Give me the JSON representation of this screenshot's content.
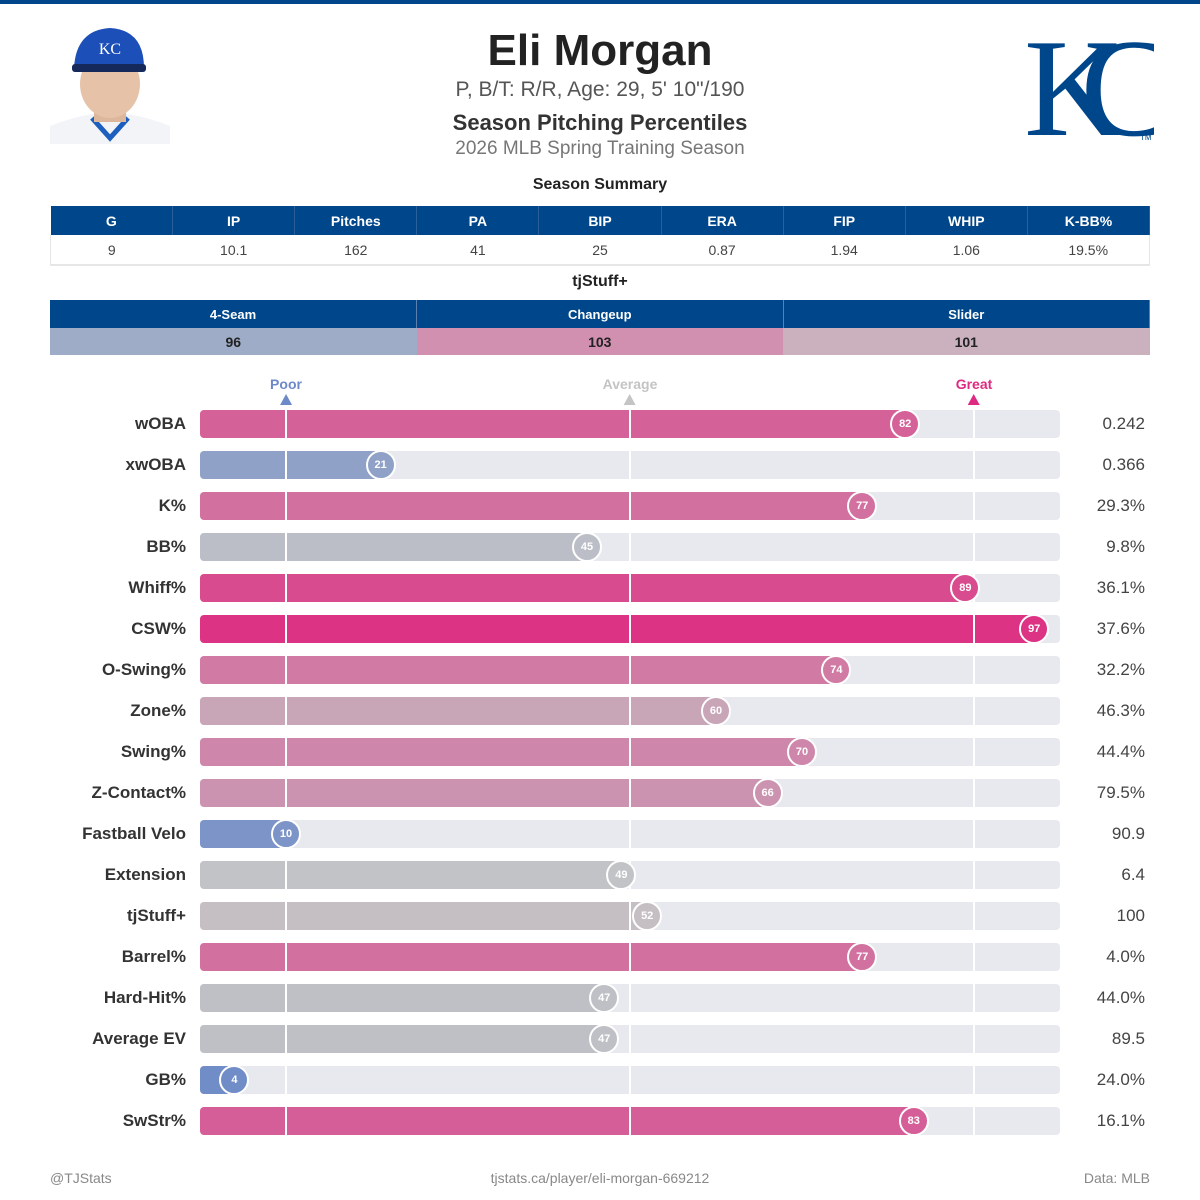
{
  "header": {
    "name": "Eli Morgan",
    "bio": "P, B/T: R/R, Age: 29, 5' 10\"/190",
    "title": "Season Pitching Percentiles",
    "season": "2026 MLB Spring Training Season",
    "logo_text": "KC",
    "brand_color": "#00468b"
  },
  "summary": {
    "title": "Season Summary",
    "columns": [
      "G",
      "IP",
      "Pitches",
      "PA",
      "BIP",
      "ERA",
      "FIP",
      "WHIP",
      "K-BB%"
    ],
    "values": [
      "9",
      "10.1",
      "162",
      "41",
      "25",
      "0.87",
      "1.94",
      "1.06",
      "19.5%"
    ]
  },
  "tjstuff": {
    "title": "tjStuff+",
    "pitches": [
      {
        "name": "4-Seam",
        "value": "96",
        "color": "#9eacc8"
      },
      {
        "name": "Changeup",
        "value": "103",
        "color": "#d190b0"
      },
      {
        "name": "Slider",
        "value": "101",
        "color": "#cbb1be"
      }
    ]
  },
  "markers": {
    "poor": "Poor",
    "average": "Average",
    "great": "Great",
    "poor_color": "#6d8ac8",
    "average_color": "#c4c4c4",
    "great_color": "#de2a80"
  },
  "chart_data": {
    "type": "bar",
    "orientation": "horizontal",
    "xlim": [
      0,
      100
    ],
    "reference_lines": [
      10,
      50,
      90
    ],
    "color_scale": [
      {
        "p": 0,
        "color": "#6a88c8"
      },
      {
        "p": 50,
        "color": "#c4c4c6"
      },
      {
        "p": 100,
        "color": "#de2a80"
      }
    ],
    "rows": [
      {
        "label": "wOBA",
        "percentile": 82,
        "value": "0.242"
      },
      {
        "label": "xwOBA",
        "percentile": 21,
        "value": "0.366"
      },
      {
        "label": "K%",
        "percentile": 77,
        "value": "29.3%"
      },
      {
        "label": "BB%",
        "percentile": 45,
        "value": "9.8%"
      },
      {
        "label": "Whiff%",
        "percentile": 89,
        "value": "36.1%"
      },
      {
        "label": "CSW%",
        "percentile": 97,
        "value": "37.6%"
      },
      {
        "label": "O-Swing%",
        "percentile": 74,
        "value": "32.2%"
      },
      {
        "label": "Zone%",
        "percentile": 60,
        "value": "46.3%"
      },
      {
        "label": "Swing%",
        "percentile": 70,
        "value": "44.4%"
      },
      {
        "label": "Z-Contact%",
        "percentile": 66,
        "value": "79.5%"
      },
      {
        "label": "Fastball Velo",
        "percentile": 10,
        "value": "90.9"
      },
      {
        "label": "Extension",
        "percentile": 49,
        "value": "6.4"
      },
      {
        "label": "tjStuff+",
        "percentile": 52,
        "value": "100"
      },
      {
        "label": "Barrel%",
        "percentile": 77,
        "value": "4.0%"
      },
      {
        "label": "Hard-Hit%",
        "percentile": 47,
        "value": "44.0%"
      },
      {
        "label": "Average EV",
        "percentile": 47,
        "value": "89.5"
      },
      {
        "label": "GB%",
        "percentile": 4,
        "value": "24.0%"
      },
      {
        "label": "SwStr%",
        "percentile": 83,
        "value": "16.1%"
      }
    ]
  },
  "footer": {
    "left": "@TJStats",
    "center": "tjstats.ca/player/eli-morgan-669212",
    "right": "Data: MLB"
  }
}
